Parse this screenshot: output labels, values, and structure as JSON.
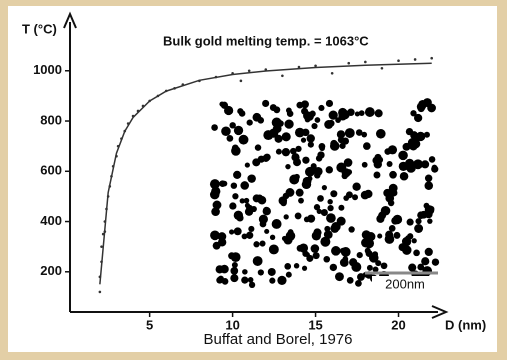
{
  "chart_data": {
    "type": "scatter",
    "ylabel": "T (°C)",
    "xlabel": "D (nm)",
    "annotations": [
      "Bulk gold melting temp. = 1063°C",
      "200nm"
    ],
    "source": "Buffat and Borel, 1976",
    "xlim": [
      0.2,
      22.5
    ],
    "ylim": [
      40,
      1210
    ],
    "xticks": [
      5,
      10,
      15,
      20
    ],
    "yticks": [
      200,
      400,
      600,
      800,
      1000
    ],
    "series": [
      {
        "line": false,
        "color": "#333333",
        "x": [
          2.0,
          2.0,
          2.1,
          2.1,
          2.2,
          2.3,
          2.3,
          2.4,
          2.5,
          2.6,
          2.7,
          2.8,
          3.0,
          3.1,
          3.3,
          3.5,
          3.7,
          4.0,
          4.3,
          4.6,
          5.0,
          5.5,
          6.0,
          6.5,
          7.0,
          8.0,
          9.0,
          10.0,
          10.5,
          11.0,
          12.0,
          13.0,
          14.0,
          15.0,
          16.0,
          17.0,
          18.0,
          19.0,
          20.0,
          21.0,
          22.0
        ],
        "values": [
          120,
          180,
          240,
          300,
          350,
          400,
          360,
          450,
          500,
          540,
          580,
          620,
          660,
          700,
          730,
          760,
          790,
          820,
          840,
          860,
          880,
          900,
          920,
          930,
          945,
          960,
          975,
          990,
          960,
          1000,
          1005,
          980,
          1015,
          1020,
          990,
          1030,
          1035,
          1010,
          1040,
          1045,
          1050
        ]
      },
      {
        "line": true,
        "color": "#333333",
        "x": [
          2,
          2.5,
          3,
          3.5,
          4,
          5,
          6,
          8,
          10,
          12,
          15,
          18,
          22
        ],
        "values": [
          150,
          515,
          672,
          759,
          814,
          880,
          919,
          962,
          985,
          999,
          1013,
          1022,
          1030
        ]
      }
    ]
  }
}
